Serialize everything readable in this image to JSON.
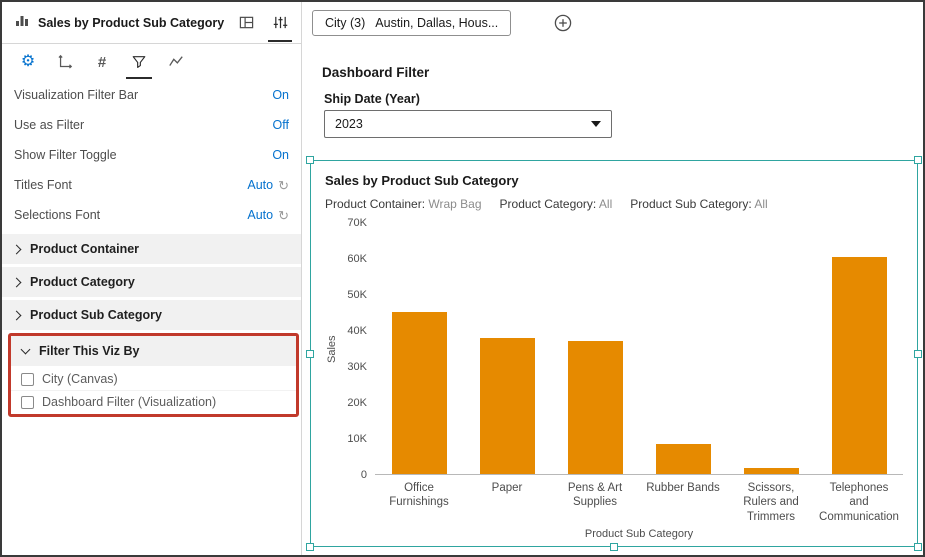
{
  "icons": {
    "gear": "⚙",
    "hash": "#",
    "reset": "↻"
  },
  "colors": {
    "accent_blue": "#0572CE",
    "bar_orange": "#E68A00",
    "highlight_red": "#C1392B",
    "selection_teal": "#2FA5A0"
  },
  "left_panel": {
    "title": "Sales by Product Sub Category",
    "properties": [
      {
        "label": "Visualization Filter Bar",
        "value": "On",
        "reset_icon": false
      },
      {
        "label": "Use as Filter",
        "value": "Off",
        "reset_icon": false
      },
      {
        "label": "Show Filter Toggle",
        "value": "On",
        "reset_icon": false
      },
      {
        "label": "Titles Font",
        "value": "Auto",
        "reset_icon": true
      },
      {
        "label": "Selections Font",
        "value": "Auto",
        "reset_icon": true
      }
    ],
    "sections": [
      {
        "label": "Product Container",
        "expanded": false,
        "highlighted": false,
        "items": []
      },
      {
        "label": "Product Category",
        "expanded": false,
        "highlighted": false,
        "items": []
      },
      {
        "label": "Product Sub Category",
        "expanded": false,
        "highlighted": false,
        "items": []
      },
      {
        "label": "Filter This Viz By",
        "expanded": true,
        "highlighted": true,
        "items": [
          {
            "label": "City (Canvas)",
            "checked": false
          },
          {
            "label": "Dashboard Filter (Visualization)",
            "checked": false
          }
        ]
      }
    ]
  },
  "filter_bar": {
    "pill_label": "City (3)",
    "pill_values": "Austin, Dallas, Hous..."
  },
  "canvas": {
    "dashboard_filter_title": "Dashboard Filter",
    "ship_date_label": "Ship Date (Year)",
    "year_value": "2023"
  },
  "viz": {
    "title": "Sales by Product Sub Category",
    "filters": [
      {
        "label": "Product Container:",
        "value": "Wrap Bag"
      },
      {
        "label": "Product Category:",
        "value": "All"
      },
      {
        "label": "Product Sub Category:",
        "value": "All"
      }
    ]
  },
  "chart_data": {
    "type": "bar",
    "title": "Sales by Product Sub Category",
    "categories": [
      "Office Furnishings",
      "Paper",
      "Pens & Art Supplies",
      "Rubber Bands",
      "Scissors, Rulers and Trimmers",
      "Telephones and Communication"
    ],
    "values": [
      45200,
      37800,
      37200,
      8300,
      1800,
      60400
    ],
    "xlabel": "Product Sub Category",
    "ylabel": "Sales",
    "ylim": [
      0,
      70000
    ],
    "yticks": [
      "0",
      "10K",
      "20K",
      "30K",
      "40K",
      "50K",
      "60K",
      "70K"
    ],
    "bar_color": "#E68A00",
    "grid": false,
    "legend": "none"
  }
}
